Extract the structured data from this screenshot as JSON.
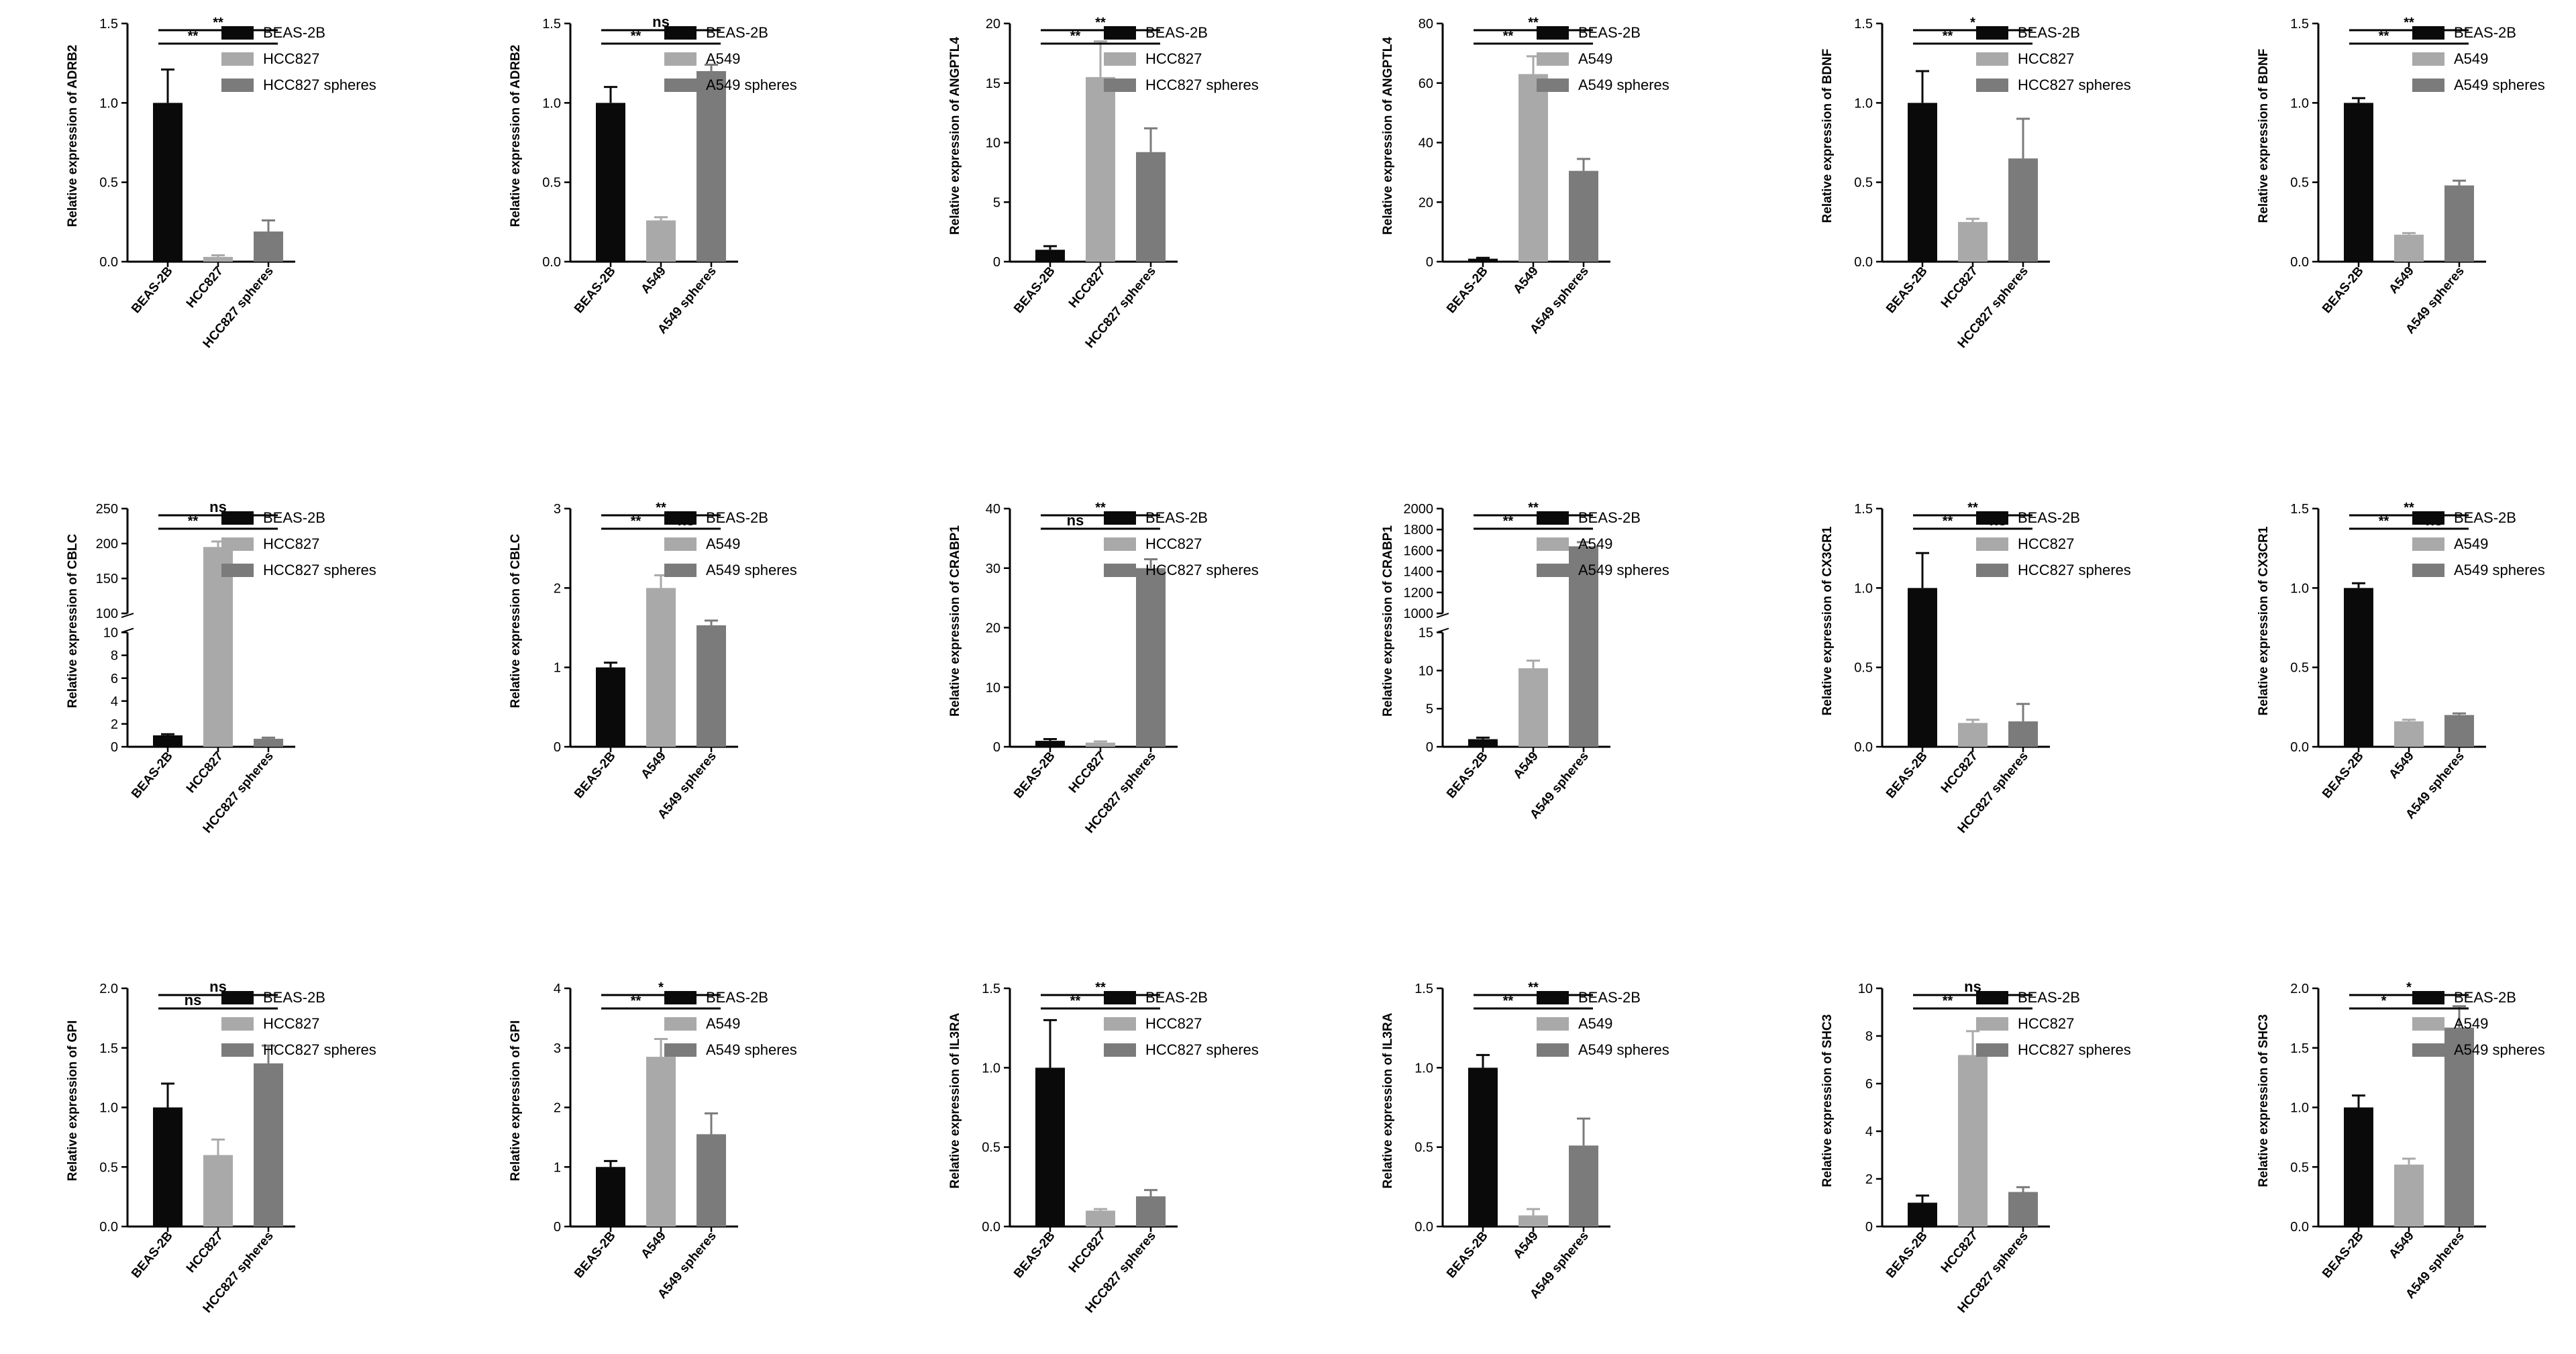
{
  "colors": {
    "bar1": "#0a0a0a",
    "bar2": "#a9a9a9",
    "bar3": "#7b7b7b",
    "axis": "#000000"
  },
  "chart_data": [
    {
      "type": "bar",
      "ylabel": "Relative expression of ADRB2",
      "categories": [
        "BEAS-2B",
        "HCC827",
        "HCC827 spheres"
      ],
      "legend": [
        "BEAS-2B",
        "HCC827",
        "HCC827 spheres"
      ],
      "ylim": [
        0,
        1.5
      ],
      "yticks": [
        0,
        0.5,
        1.0,
        1.5
      ],
      "yticklabels": [
        "0.0",
        "0.5",
        "1.0",
        "1.5"
      ],
      "values": [
        1.0,
        0.03,
        0.19
      ],
      "errors": [
        0.21,
        0.01,
        0.07
      ],
      "significance": [
        {
          "from": 0,
          "to": 1,
          "label": "**"
        },
        {
          "from": 1,
          "to": 2,
          "label": "**"
        },
        {
          "from": 0,
          "to": 2,
          "label": "**"
        }
      ]
    },
    {
      "type": "bar",
      "ylabel": "Relative expression of ADRB2",
      "categories": [
        "BEAS-2B",
        "A549",
        "A549 spheres"
      ],
      "legend": [
        "BEAS-2B",
        "A549",
        " A549 spheres"
      ],
      "ylim": [
        0,
        1.5
      ],
      "yticks": [
        0,
        0.5,
        1.0,
        1.5
      ],
      "yticklabels": [
        "0.0",
        "0.5",
        "1.0",
        "1.5"
      ],
      "values": [
        1.0,
        0.26,
        1.2
      ],
      "errors": [
        0.1,
        0.02,
        0.04
      ],
      "significance": [
        {
          "from": 0,
          "to": 1,
          "label": "**"
        },
        {
          "from": 1,
          "to": 2,
          "label": "**"
        },
        {
          "from": 0,
          "to": 2,
          "label": "ns"
        }
      ]
    },
    {
      "type": "bar",
      "ylabel": "Relative expression of ANGPTL4",
      "categories": [
        "BEAS-2B",
        "HCC827",
        "HCC827 spheres"
      ],
      "legend": [
        "BEAS-2B",
        "HCC827",
        "HCC827 spheres"
      ],
      "ylim": [
        0,
        20
      ],
      "yticks": [
        0,
        5,
        10,
        15,
        20
      ],
      "yticklabels": [
        "0",
        "5",
        "10",
        "15",
        "20"
      ],
      "values": [
        1.0,
        15.5,
        9.2
      ],
      "errors": [
        0.3,
        3.0,
        2.0
      ],
      "significance": [
        {
          "from": 0,
          "to": 1,
          "label": "**"
        },
        {
          "from": 1,
          "to": 2,
          "label": "**"
        },
        {
          "from": 0,
          "to": 2,
          "label": "**"
        }
      ]
    },
    {
      "type": "bar",
      "ylabel": "Relative expression of ANGPTL4",
      "categories": [
        "BEAS-2B",
        "A549",
        "A549 spheres"
      ],
      "legend": [
        "BEAS-2B",
        "A549",
        " A549 spheres"
      ],
      "ylim": [
        0,
        80
      ],
      "yticks": [
        0,
        20,
        40,
        60,
        80
      ],
      "yticklabels": [
        "0",
        "20",
        "40",
        "60",
        "80"
      ],
      "values": [
        1.0,
        63.0,
        30.5
      ],
      "errors": [
        0.3,
        6.0,
        4.0
      ],
      "significance": [
        {
          "from": 0,
          "to": 1,
          "label": "**"
        },
        {
          "from": 1,
          "to": 2,
          "label": "**"
        },
        {
          "from": 0,
          "to": 2,
          "label": "**"
        }
      ]
    },
    {
      "type": "bar",
      "ylabel": "Relative expression of BDNF",
      "categories": [
        "BEAS-2B",
        "HCC827",
        "HCC827 spheres"
      ],
      "legend": [
        "BEAS-2B",
        "HCC827",
        "HCC827 spheres"
      ],
      "ylim": [
        0,
        1.5
      ],
      "yticks": [
        0,
        0.5,
        1.0,
        1.5
      ],
      "yticklabels": [
        "0.0",
        "0.5",
        "1.0",
        "1.5"
      ],
      "values": [
        1.0,
        0.25,
        0.65
      ],
      "errors": [
        0.2,
        0.02,
        0.25
      ],
      "significance": [
        {
          "from": 0,
          "to": 1,
          "label": "**"
        },
        {
          "from": 1,
          "to": 2,
          "label": "**"
        },
        {
          "from": 0,
          "to": 2,
          "label": "*"
        }
      ]
    },
    {
      "type": "bar",
      "ylabel": "Relative expression of BDNF",
      "categories": [
        "BEAS-2B",
        "A549",
        "A549 spheres"
      ],
      "legend": [
        "BEAS-2B",
        "A549",
        " A549 spheres"
      ],
      "ylim": [
        0,
        1.5
      ],
      "yticks": [
        0,
        0.5,
        1.0,
        1.5
      ],
      "yticklabels": [
        "0.0",
        "0.5",
        "1.0",
        "1.5"
      ],
      "values": [
        1.0,
        0.17,
        0.48
      ],
      "errors": [
        0.03,
        0.01,
        0.03
      ],
      "significance": [
        {
          "from": 0,
          "to": 1,
          "label": "**"
        },
        {
          "from": 1,
          "to": 2,
          "label": "**"
        },
        {
          "from": 0,
          "to": 2,
          "label": "**"
        }
      ]
    },
    {
      "type": "bar",
      "ylabel": "Relative expression of CBLC",
      "categories": [
        "BEAS-2B",
        "HCC827",
        "HCC827 spheres"
      ],
      "legend": [
        "BEAS-2B",
        "HCC827",
        "HCC827 spheres"
      ],
      "ylim": [
        0,
        250
      ],
      "axis_break": [
        10,
        100
      ],
      "yticks": [
        0,
        2,
        4,
        6,
        8,
        10,
        100,
        150,
        200,
        250
      ],
      "yticklabels": [
        "0",
        "2",
        "4",
        "6",
        "8",
        "10",
        "100",
        "150",
        "200",
        "250"
      ],
      "values": [
        1.0,
        195.0,
        0.7
      ],
      "errors": [
        0.1,
        8.0,
        0.1
      ],
      "significance": [
        {
          "from": 0,
          "to": 1,
          "label": "**"
        },
        {
          "from": 1,
          "to": 2,
          "label": "**"
        },
        {
          "from": 0,
          "to": 2,
          "label": "ns"
        }
      ]
    },
    {
      "type": "bar",
      "ylabel": "Relative expression of CBLC",
      "categories": [
        "BEAS-2B",
        "A549",
        "A549 spheres"
      ],
      "legend": [
        "BEAS-2B",
        "A549",
        " A549 spheres"
      ],
      "ylim": [
        0,
        3
      ],
      "yticks": [
        0,
        1,
        2,
        3
      ],
      "yticklabels": [
        "0",
        "1",
        "2",
        "3"
      ],
      "values": [
        1.0,
        2.0,
        1.53
      ],
      "errors": [
        0.06,
        0.16,
        0.06
      ],
      "significance": [
        {
          "from": 0,
          "to": 1,
          "label": "**"
        },
        {
          "from": 1,
          "to": 2,
          "label": "ns"
        },
        {
          "from": 0,
          "to": 2,
          "label": "**"
        }
      ]
    },
    {
      "type": "bar",
      "ylabel": "Relative expression of CRABP1",
      "categories": [
        "BEAS-2B",
        "HCC827",
        "HCC827 spheres"
      ],
      "legend": [
        "BEAS-2B",
        "HCC827",
        "HCC827 spheres"
      ],
      "ylim": [
        0,
        40
      ],
      "yticks": [
        0,
        10,
        20,
        30,
        40
      ],
      "yticklabels": [
        "0",
        "10",
        "20",
        "30",
        "40"
      ],
      "values": [
        1.0,
        0.7,
        30.0
      ],
      "errors": [
        0.3,
        0.2,
        1.5
      ],
      "significance": [
        {
          "from": 0,
          "to": 1,
          "label": "ns"
        },
        {
          "from": 1,
          "to": 2,
          "label": "**"
        },
        {
          "from": 0,
          "to": 2,
          "label": "**"
        }
      ]
    },
    {
      "type": "bar",
      "ylabel": "Relative expression of CRABP1",
      "categories": [
        "BEAS-2B",
        "A549",
        "A549 spheres"
      ],
      "legend": [
        "BEAS-2B",
        "A549",
        " A549 spheres"
      ],
      "ylim": [
        0,
        2000
      ],
      "axis_break": [
        15,
        1000
      ],
      "yticks": [
        0,
        5,
        10,
        15,
        1000,
        1200,
        1400,
        1600,
        1800,
        2000
      ],
      "yticklabels": [
        "0",
        "5",
        "10",
        "15",
        "1000",
        "1200",
        "1400",
        "1600",
        "1800",
        "2000"
      ],
      "values": [
        1.0,
        10.3,
        1640.0
      ],
      "errors": [
        0.2,
        1.0,
        40.0
      ],
      "significance": [
        {
          "from": 0,
          "to": 1,
          "label": "**"
        },
        {
          "from": 1,
          "to": 2,
          "label": "**"
        },
        {
          "from": 0,
          "to": 2,
          "label": "**"
        }
      ]
    },
    {
      "type": "bar",
      "ylabel": "Relative expression of CX3CR1",
      "categories": [
        "BEAS-2B",
        "HCC827",
        "HCC827 spheres"
      ],
      "legend": [
        "BEAS-2B",
        "HCC827",
        "HCC827 spheres"
      ],
      "ylim": [
        0,
        1.5
      ],
      "yticks": [
        0,
        0.5,
        1.0,
        1.5
      ],
      "yticklabels": [
        "0.0",
        "0.5",
        "1.0",
        "1.5"
      ],
      "values": [
        1.0,
        0.15,
        0.16
      ],
      "errors": [
        0.22,
        0.02,
        0.11
      ],
      "significance": [
        {
          "from": 0,
          "to": 1,
          "label": "**"
        },
        {
          "from": 1,
          "to": 2,
          "label": "ns"
        },
        {
          "from": 0,
          "to": 2,
          "label": "**"
        }
      ]
    },
    {
      "type": "bar",
      "ylabel": "Relative expression of CX3CR1",
      "categories": [
        "BEAS-2B",
        "A549",
        "A549 spheres"
      ],
      "legend": [
        "BEAS-2B",
        "A549",
        " A549 spheres"
      ],
      "ylim": [
        0,
        1.5
      ],
      "yticks": [
        0,
        0.5,
        1.0,
        1.5
      ],
      "yticklabels": [
        "0.0",
        "0.5",
        "1.0",
        "1.5"
      ],
      "values": [
        1.0,
        0.16,
        0.2
      ],
      "errors": [
        0.03,
        0.01,
        0.01
      ],
      "significance": [
        {
          "from": 0,
          "to": 1,
          "label": "**"
        },
        {
          "from": 1,
          "to": 2,
          "label": "ns"
        },
        {
          "from": 0,
          "to": 2,
          "label": "**"
        }
      ]
    },
    {
      "type": "bar",
      "ylabel": "Relative expression of GPI",
      "categories": [
        "BEAS-2B",
        "HCC827",
        "HCC827 spheres"
      ],
      "legend": [
        "BEAS-2B",
        "HCC827",
        "HCC827 spheres"
      ],
      "ylim": [
        0,
        2.0
      ],
      "yticks": [
        0,
        0.5,
        1.0,
        1.5,
        2.0
      ],
      "yticklabels": [
        "0.0",
        "0.5",
        "1.0",
        "1.5",
        "2.0"
      ],
      "values": [
        1.0,
        0.6,
        1.37
      ],
      "errors": [
        0.2,
        0.13,
        0.15
      ],
      "significance": [
        {
          "from": 0,
          "to": 1,
          "label": "ns"
        },
        {
          "from": 1,
          "to": 2,
          "label": "**"
        },
        {
          "from": 0,
          "to": 2,
          "label": "ns"
        }
      ]
    },
    {
      "type": "bar",
      "ylabel": "Relative expression of GPI",
      "categories": [
        "BEAS-2B",
        "A549",
        "A549 spheres"
      ],
      "legend": [
        "BEAS-2B",
        "A549",
        " A549 spheres"
      ],
      "ylim": [
        0,
        4
      ],
      "yticks": [
        0,
        1,
        2,
        3,
        4
      ],
      "yticklabels": [
        "0",
        "1",
        "2",
        "3",
        "4"
      ],
      "values": [
        1.0,
        2.85,
        1.55
      ],
      "errors": [
        0.1,
        0.3,
        0.35
      ],
      "significance": [
        {
          "from": 0,
          "to": 1,
          "label": "**"
        },
        {
          "from": 1,
          "to": 2,
          "label": "*"
        },
        {
          "from": 0,
          "to": 2,
          "label": "*"
        }
      ]
    },
    {
      "type": "bar",
      "ylabel": "Relative expression of IL3RA",
      "categories": [
        "BEAS-2B",
        "HCC827",
        "HCC827 spheres"
      ],
      "legend": [
        "BEAS-2B",
        "HCC827",
        "HCC827 spheres"
      ],
      "ylim": [
        0,
        1.5
      ],
      "yticks": [
        0,
        0.5,
        1.0,
        1.5
      ],
      "yticklabels": [
        "0.0",
        "0.5",
        "1.0",
        "1.5"
      ],
      "values": [
        1.0,
        0.1,
        0.19
      ],
      "errors": [
        0.3,
        0.01,
        0.04
      ],
      "significance": [
        {
          "from": 0,
          "to": 1,
          "label": "**"
        },
        {
          "from": 1,
          "to": 2,
          "label": "*"
        },
        {
          "from": 0,
          "to": 2,
          "label": "**"
        }
      ]
    },
    {
      "type": "bar",
      "ylabel": "Relative expression of IL3RA",
      "categories": [
        "BEAS-2B",
        "A549",
        "A549 spheres"
      ],
      "legend": [
        "BEAS-2B",
        "A549",
        " A549 spheres"
      ],
      "ylim": [
        0,
        1.5
      ],
      "yticks": [
        0,
        0.5,
        1.0,
        1.5
      ],
      "yticklabels": [
        "0.0",
        "0.5",
        "1.0",
        "1.5"
      ],
      "values": [
        1.0,
        0.07,
        0.51
      ],
      "errors": [
        0.08,
        0.04,
        0.17
      ],
      "significance": [
        {
          "from": 0,
          "to": 1,
          "label": "**"
        },
        {
          "from": 1,
          "to": 2,
          "label": "**"
        },
        {
          "from": 0,
          "to": 2,
          "label": "**"
        }
      ]
    },
    {
      "type": "bar",
      "ylabel": "Relative expression of SHC3",
      "categories": [
        "BEAS-2B",
        "HCC827",
        "HCC827 spheres"
      ],
      "legend": [
        "BEAS-2B",
        "HCC827",
        "HCC827 spheres"
      ],
      "ylim": [
        0,
        10
      ],
      "yticks": [
        0,
        2,
        4,
        6,
        8,
        10
      ],
      "yticklabels": [
        "0",
        "2",
        "4",
        "6",
        "8",
        "10"
      ],
      "values": [
        1.0,
        7.2,
        1.45
      ],
      "errors": [
        0.3,
        1.0,
        0.2
      ],
      "significance": [
        {
          "from": 0,
          "to": 1,
          "label": "**"
        },
        {
          "from": 1,
          "to": 2,
          "label": "**"
        },
        {
          "from": 0,
          "to": 2,
          "label": "ns"
        }
      ]
    },
    {
      "type": "bar",
      "ylabel": "Relative expression of SHC3",
      "categories": [
        "BEAS-2B",
        "A549",
        "A549 spheres"
      ],
      "legend": [
        "BEAS-2B",
        "A549",
        " A549 spheres"
      ],
      "ylim": [
        0,
        2.0
      ],
      "yticks": [
        0,
        0.5,
        1.0,
        1.5,
        2.0
      ],
      "yticklabels": [
        "0.0",
        "0.5",
        "1.0",
        "1.5",
        "2.0"
      ],
      "values": [
        1.0,
        0.52,
        1.67
      ],
      "errors": [
        0.1,
        0.05,
        0.18
      ],
      "significance": [
        {
          "from": 0,
          "to": 1,
          "label": "*"
        },
        {
          "from": 1,
          "to": 2,
          "label": "**"
        },
        {
          "from": 0,
          "to": 2,
          "label": "*"
        }
      ]
    }
  ]
}
